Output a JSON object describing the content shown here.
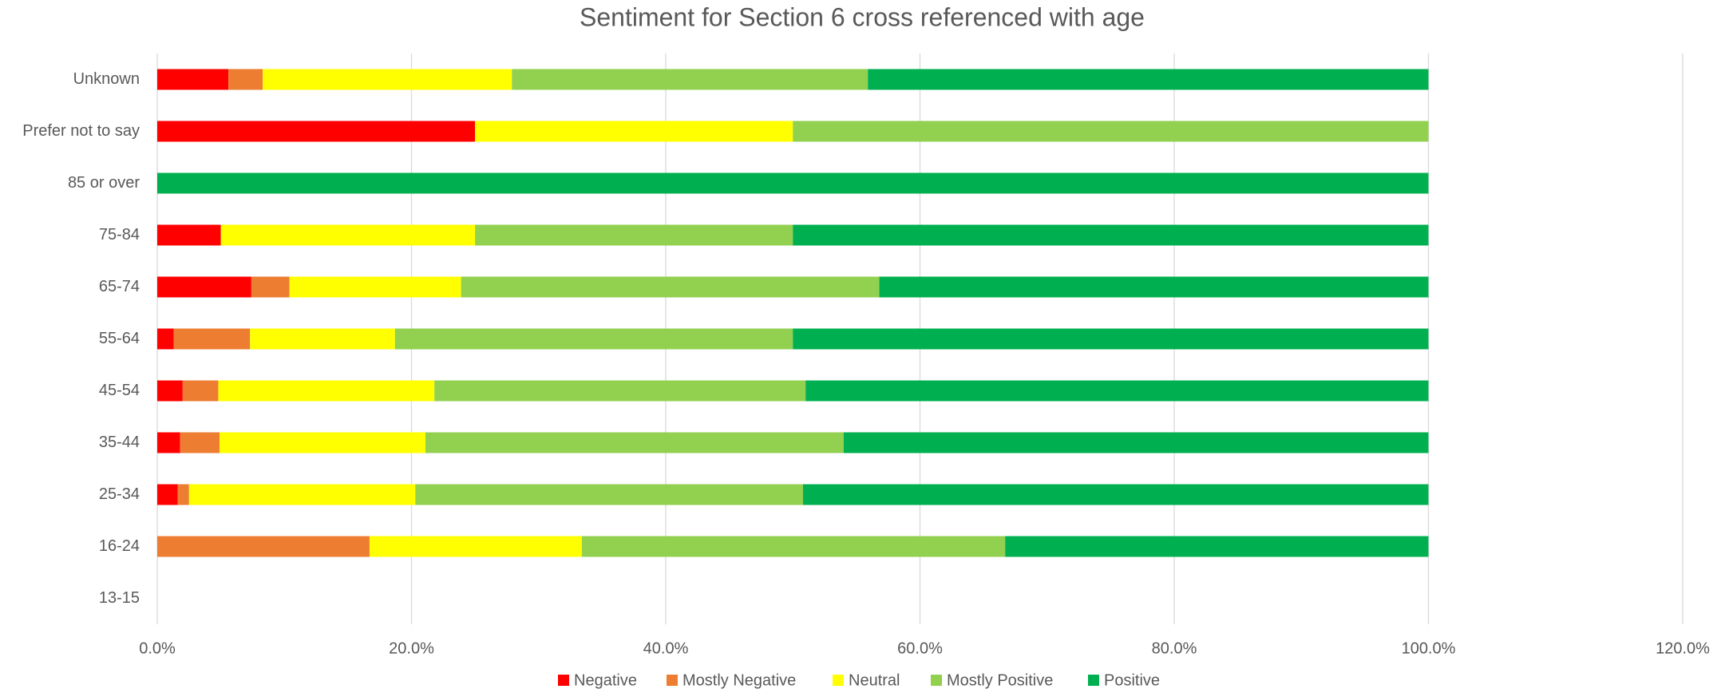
{
  "chart_data": {
    "type": "stacked-bar-horizontal",
    "title": "Sentiment for Section 6 cross referenced with age",
    "categories": [
      "Unknown",
      "Prefer not to say",
      "85 or over",
      "75-84",
      "65-74",
      "55-64",
      "45-54",
      "35-44",
      "25-34",
      "16-24",
      "13-15"
    ],
    "series": [
      {
        "name": "Negative",
        "color": "#ff0000",
        "values": [
          5.6,
          25,
          0,
          5,
          7.4,
          1.3,
          2.0,
          1.8,
          1.6,
          0,
          0
        ]
      },
      {
        "name": "Mostly Negative",
        "color": "#ed7d31",
        "values": [
          2.7,
          0,
          0,
          0,
          3.0,
          6.0,
          2.8,
          3.1,
          0.9,
          16.7,
          0
        ]
      },
      {
        "name": "Neutral",
        "color": "#ffff00",
        "values": [
          19.6,
          25,
          0,
          20,
          13.5,
          11.4,
          17.0,
          16.2,
          17.8,
          16.7,
          0
        ]
      },
      {
        "name": "Mostly Positive",
        "color": "#92d050",
        "values": [
          28.0,
          50,
          0,
          25,
          32.9,
          31.3,
          29.2,
          32.9,
          30.5,
          33.3,
          0
        ]
      },
      {
        "name": "Positive",
        "color": "#00b050",
        "values": [
          44.1,
          0,
          100,
          50,
          43.2,
          50.0,
          49.0,
          46.0,
          49.2,
          33.3,
          0
        ]
      }
    ],
    "xlim": [
      0,
      120
    ],
    "xticks": [
      {
        "value": 0,
        "label": "0.0%"
      },
      {
        "value": 20,
        "label": "20.0%"
      },
      {
        "value": 40,
        "label": "40.0%"
      },
      {
        "value": 60,
        "label": "60.0%"
      },
      {
        "value": 80,
        "label": "80.0%"
      },
      {
        "value": 100,
        "label": "100.0%"
      },
      {
        "value": 120,
        "label": "120.0%"
      }
    ],
    "grid": true,
    "legend": "bottom"
  }
}
